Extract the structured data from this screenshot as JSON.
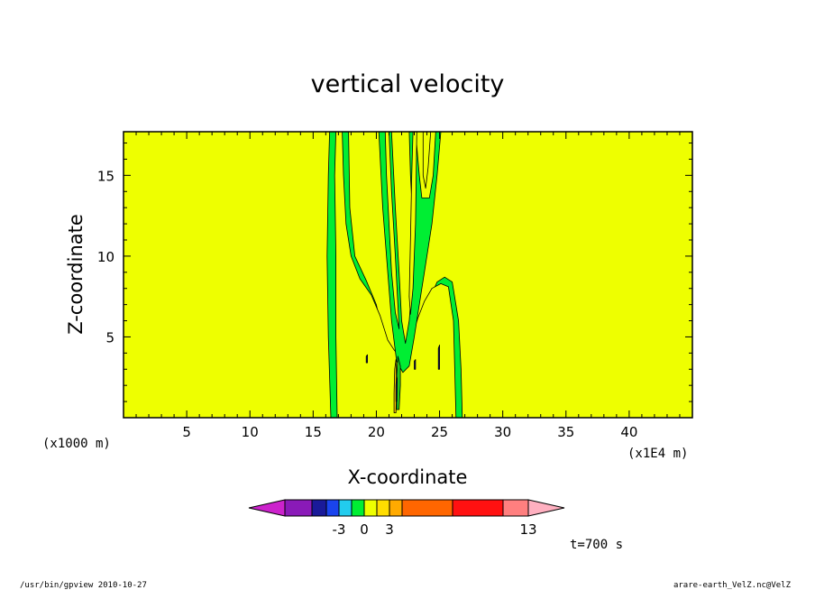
{
  "chart_data": {
    "type": "contour",
    "title": "vertical velocity",
    "xlabel": "X-coordinate",
    "ylabel": "Z-coordinate",
    "x_unit_label": "(x1E4 m)",
    "z_unit_label": "(x1000 m)",
    "xlim": [
      0,
      45
    ],
    "ylim": [
      0,
      17.7
    ],
    "x_ticks": [
      5,
      10,
      15,
      20,
      25,
      30,
      35,
      40
    ],
    "y_ticks": [
      5,
      10,
      15
    ],
    "x_tick_labels": [
      "5",
      "10",
      "15",
      "20",
      "25",
      "30",
      "35",
      "40"
    ],
    "y_tick_labels": [
      "5",
      "10",
      "15"
    ],
    "background_level_color": "#eeff00",
    "regions": [
      {
        "name": "main-updraft-column",
        "level_color": "#00ee33",
        "outline": [
          [
            16.4,
            0
          ],
          [
            16.2,
            5
          ],
          [
            16.1,
            10
          ],
          [
            16.2,
            15
          ],
          [
            16.3,
            17.7
          ],
          [
            17.8,
            17.7
          ],
          [
            17.9,
            13
          ],
          [
            18.3,
            10
          ],
          [
            19.2,
            8.5
          ],
          [
            20,
            7
          ],
          [
            20.4,
            5.5
          ],
          [
            21,
            4
          ],
          [
            21.7,
            3.7
          ],
          [
            22,
            3.5
          ],
          [
            22.3,
            4.5
          ],
          [
            23,
            5.5
          ],
          [
            23.5,
            6.5
          ],
          [
            23.9,
            7
          ],
          [
            24.3,
            7.5
          ],
          [
            24.8,
            8.4
          ],
          [
            25.4,
            8.7
          ],
          [
            26,
            8.4
          ],
          [
            26.5,
            6
          ],
          [
            26.7,
            3
          ],
          [
            26.8,
            0
          ]
        ]
      },
      {
        "name": "left-hole",
        "level_color": "#eeff00",
        "outline": [
          [
            16.9,
            0
          ],
          [
            16.8,
            5
          ],
          [
            16.8,
            10
          ],
          [
            16.7,
            15
          ],
          [
            16.8,
            17.7
          ],
          [
            17.3,
            17.7
          ],
          [
            17.4,
            15
          ],
          [
            17.6,
            12
          ],
          [
            18,
            10
          ],
          [
            18.7,
            8.6
          ],
          [
            19.6,
            7.6
          ],
          [
            20.3,
            6.3
          ],
          [
            20.9,
            4.8
          ],
          [
            21.4,
            4.2
          ],
          [
            21.8,
            3.8
          ],
          [
            21.9,
            3.5
          ],
          [
            22.2,
            3.5
          ],
          [
            22.5,
            4.3
          ],
          [
            22.9,
            5.2
          ],
          [
            23.3,
            6.2
          ],
          [
            23.8,
            7.2
          ],
          [
            24.4,
            8
          ],
          [
            25.1,
            8.3
          ],
          [
            25.7,
            8.1
          ],
          [
            26.1,
            6
          ],
          [
            26.2,
            3
          ],
          [
            26.3,
            0
          ]
        ]
      },
      {
        "name": "central-branch-left",
        "level_color": "#00ee33",
        "outline": [
          [
            20.2,
            17.7
          ],
          [
            21.2,
            17.7
          ],
          [
            21.5,
            13
          ],
          [
            21.8,
            9
          ],
          [
            22,
            6
          ],
          [
            22.3,
            4.6
          ],
          [
            22.6,
            6
          ],
          [
            22.9,
            9
          ],
          [
            22.9,
            12
          ],
          [
            22.7,
            15
          ],
          [
            22.6,
            17.7
          ],
          [
            23.1,
            17.7
          ],
          [
            23.4,
            15
          ],
          [
            23.6,
            13.6
          ],
          [
            24.2,
            13.6
          ],
          [
            24.5,
            15
          ],
          [
            24.7,
            17.7
          ],
          [
            25.1,
            17.7
          ],
          [
            24.8,
            15
          ],
          [
            24.4,
            12
          ],
          [
            23.9,
            9.5
          ],
          [
            23.4,
            7
          ],
          [
            23,
            5
          ],
          [
            22.6,
            3.2
          ],
          [
            22.1,
            2.8
          ],
          [
            21.6,
            3.5
          ],
          [
            21.2,
            6
          ],
          [
            20.9,
            9
          ],
          [
            20.5,
            13
          ]
        ]
      },
      {
        "name": "central-branch-hole-a",
        "level_color": "#eeff00",
        "outline": [
          [
            20.7,
            17.7
          ],
          [
            21.0,
            17.7
          ],
          [
            21.2,
            14
          ],
          [
            21.5,
            10
          ],
          [
            21.7,
            7
          ],
          [
            21.8,
            5.5
          ],
          [
            21.5,
            6.5
          ],
          [
            21.2,
            9
          ],
          [
            21,
            12
          ],
          [
            20.8,
            15
          ]
        ]
      },
      {
        "name": "central-branch-hole-b",
        "level_color": "#eeff00",
        "outline": [
          [
            23.7,
            17.7
          ],
          [
            24.3,
            17.7
          ],
          [
            24.1,
            15.5
          ],
          [
            23.9,
            14.2
          ],
          [
            23.7,
            15
          ]
        ]
      },
      {
        "name": "central-branch-hole-c",
        "level_color": "#eeff00",
        "outline": [
          [
            22.9,
            17.7
          ],
          [
            23.2,
            17.7
          ],
          [
            23.1,
            12
          ],
          [
            22.9,
            8
          ],
          [
            22.7,
            6.4
          ],
          [
            22.6,
            7.5
          ],
          [
            22.7,
            11
          ],
          [
            22.8,
            15
          ]
        ]
      },
      {
        "name": "downdraft-core",
        "level_color": "#22cc22",
        "outline": [
          [
            21.6,
            0.5
          ],
          [
            21.8,
            0.5
          ],
          [
            21.9,
            2
          ],
          [
            21.9,
            3.2
          ],
          [
            21.7,
            3.8
          ],
          [
            21.6,
            2.5
          ]
        ]
      },
      {
        "name": "updraft-core-orange",
        "level_color": "#ffcc00",
        "outline": [
          [
            21.4,
            0.3
          ],
          [
            21.55,
            0.3
          ],
          [
            21.6,
            2.0
          ],
          [
            21.55,
            3.6
          ],
          [
            21.45,
            3.0
          ],
          [
            21.4,
            1.5
          ]
        ]
      },
      {
        "name": "updraft-core-dark",
        "level_color": "#1a1a80",
        "outline": [
          [
            21.55,
            1.0
          ],
          [
            21.62,
            1.0
          ],
          [
            21.65,
            2.4
          ],
          [
            21.6,
            2.6
          ],
          [
            21.55,
            2.0
          ]
        ]
      },
      {
        "name": "small-pocket-right",
        "level_color": "#1a1a80",
        "outline": [
          [
            23.0,
            3.0
          ],
          [
            23.1,
            3.0
          ],
          [
            23.1,
            3.6
          ],
          [
            23.0,
            3.5
          ]
        ]
      },
      {
        "name": "small-pocket-far-right",
        "level_color": "#1a1a80",
        "outline": [
          [
            24.9,
            3.0
          ],
          [
            25.0,
            3.0
          ],
          [
            25.0,
            4.5
          ],
          [
            24.9,
            4.3
          ]
        ]
      },
      {
        "name": "small-pocket-left",
        "level_color": "#1a1a80",
        "outline": [
          [
            19.2,
            3.4
          ],
          [
            19.3,
            3.4
          ],
          [
            19.3,
            3.9
          ],
          [
            19.2,
            3.8
          ]
        ]
      }
    ],
    "colorbar": {
      "colors": [
        "#cc22cc",
        "#8a1ab8",
        "#1a1a99",
        "#1a44ee",
        "#22ccee",
        "#00ee33",
        "#eeff00",
        "#ffdd00",
        "#ffaa00",
        "#ff6600",
        "#ff1111",
        "#ff7f7f",
        "#ffb0c0"
      ],
      "tick_labels": [
        "-3",
        "0",
        "3",
        "13"
      ],
      "tick_after_box_index": [
        3,
        5,
        7,
        11
      ]
    },
    "time_label": "t=700 s"
  },
  "footer": {
    "left": "/usr/bin/gpview   2010-10-27",
    "right": "arare-earth_VelZ.nc@VelZ"
  }
}
